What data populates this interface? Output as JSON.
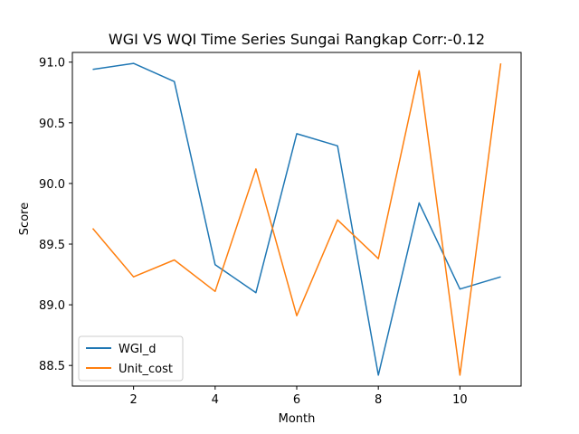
{
  "chart_data": {
    "type": "line",
    "title": "WGI VS WQI Time Series Sungai Rangkap Corr:-0.12",
    "xlabel": "Month",
    "ylabel": "Score",
    "xlim": [
      0.5,
      11.5
    ],
    "ylim": [
      88.33,
      91.08
    ],
    "x_ticks": [
      2,
      4,
      6,
      8,
      10
    ],
    "y_ticks": [
      88.5,
      89.0,
      89.5,
      90.0,
      90.5,
      91.0
    ],
    "y_tick_labels": [
      "88.5",
      "89.0",
      "89.5",
      "90.0",
      "90.5",
      "91.0"
    ],
    "grid": false,
    "legend_position": "lower-left",
    "x": [
      1,
      2,
      3,
      4,
      5,
      6,
      7,
      8,
      9,
      10,
      11
    ],
    "series": [
      {
        "name": "WGI_d",
        "color": "#1f77b4",
        "values": [
          90.94,
          90.99,
          90.84,
          89.33,
          89.1,
          90.41,
          90.31,
          88.42,
          89.84,
          89.13,
          89.23
        ]
      },
      {
        "name": "Unit_cost",
        "color": "#ff7f0e",
        "values": [
          89.63,
          89.23,
          89.37,
          89.11,
          90.12,
          88.91,
          89.7,
          89.38,
          90.93,
          88.42,
          90.99
        ]
      }
    ]
  }
}
